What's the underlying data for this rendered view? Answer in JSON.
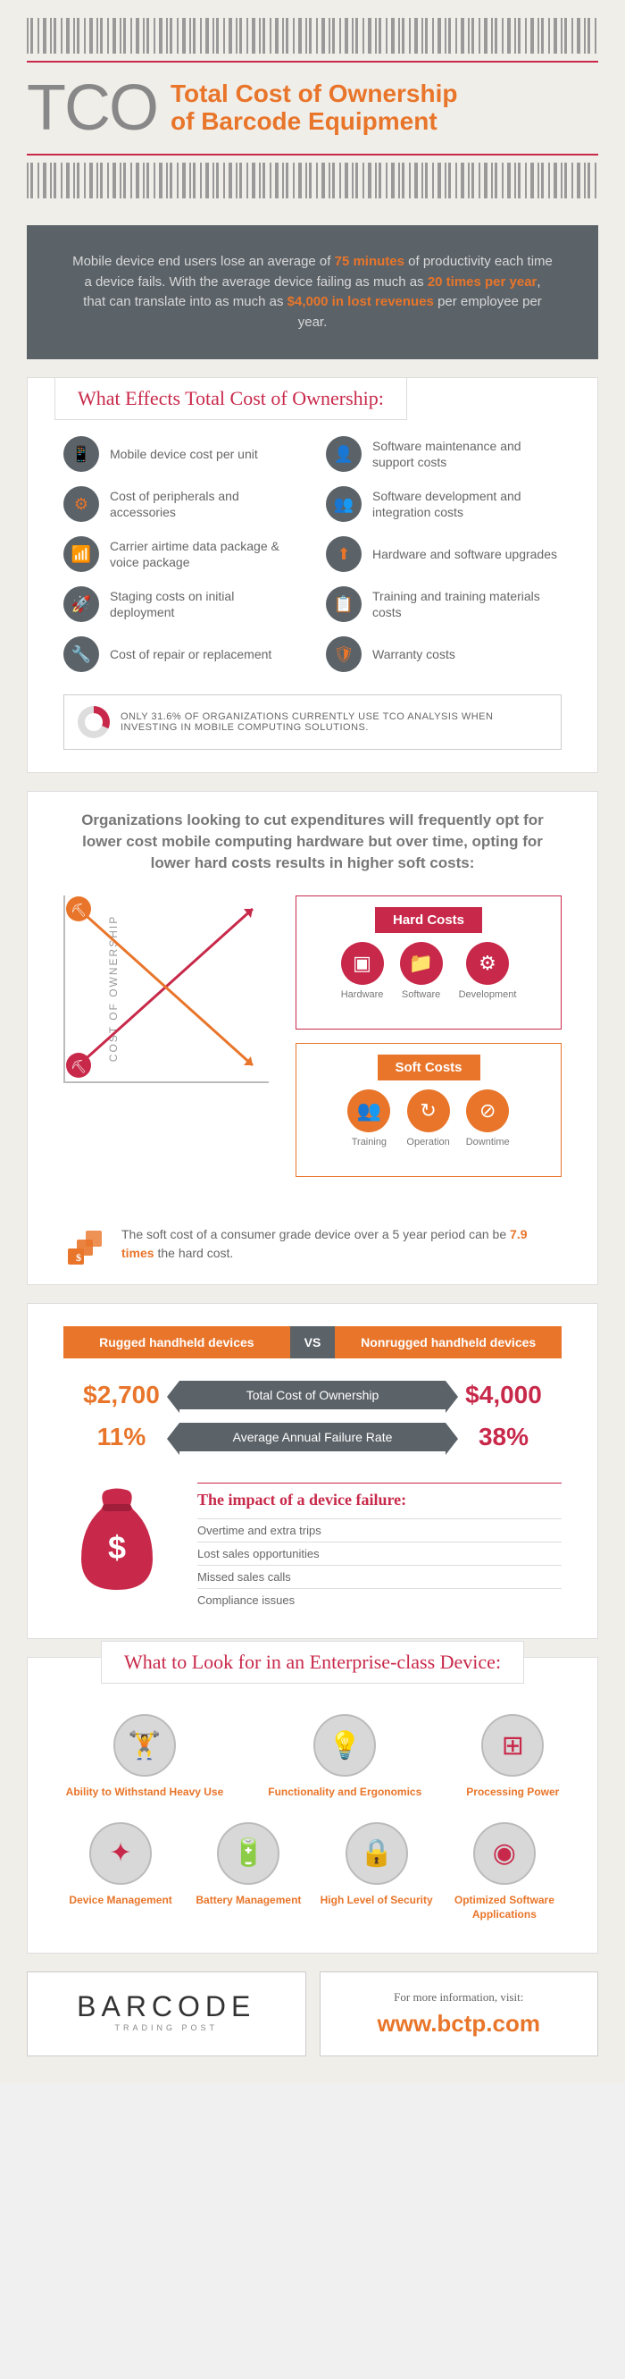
{
  "header": {
    "acronym": "TCO",
    "title_line1": "Total Cost of Ownership",
    "title_line2": "of Barcode Equipment"
  },
  "intro": {
    "pre1": "Mobile device end users lose an average of ",
    "hl1": "75 minutes",
    "mid1": " of productivity each time a device fails. With the average device failing as much as ",
    "hl2": "20 times per year",
    "mid2": ", that can translate into as much as ",
    "hl3": "$4,000 in lost revenues",
    "post": " per employee per year."
  },
  "effects": {
    "title": "What Effects Total Cost of Ownership:",
    "items": [
      {
        "icon": "📱",
        "label": "Mobile device cost per unit"
      },
      {
        "icon": "👤",
        "label": "Software maintenance and support costs"
      },
      {
        "icon": "⚙",
        "label": "Cost of peripherals and accessories"
      },
      {
        "icon": "👥",
        "label": "Software development and integration costs"
      },
      {
        "icon": "📶",
        "label": "Carrier airtime data package & voice package"
      },
      {
        "icon": "⬆",
        "label": "Hardware and software upgrades"
      },
      {
        "icon": "🚀",
        "label": "Staging costs on initial deployment"
      },
      {
        "icon": "📋",
        "label": "Training and training materials costs"
      },
      {
        "icon": "🔧",
        "label": "Cost of repair or replacement"
      },
      {
        "icon": "🛡",
        "label": "Warranty costs"
      }
    ],
    "stat_pct": 31.6,
    "stat_text": "ONLY 31.6% OF ORGANIZATIONS CURRENTLY USE TCO ANALYSIS WHEN INVESTING IN MOBILE COMPUTING SOLUTIONS."
  },
  "chart": {
    "intro": "Organizations looking to cut expenditures will frequently opt for lower cost mobile computing hardware but over time, opting for lower hard costs results in higher soft costs:",
    "ylabel": "COST OF OWNERSHIP",
    "hard_label": "Hard Costs",
    "hard_items": [
      {
        "icon": "▣",
        "label": "Hardware"
      },
      {
        "icon": "📁",
        "label": "Software"
      },
      {
        "icon": "⚙",
        "label": "Development"
      }
    ],
    "soft_label": "Soft Costs",
    "soft_items": [
      {
        "icon": "👥",
        "label": "Training"
      },
      {
        "icon": "↻",
        "label": "Operation"
      },
      {
        "icon": "⊘",
        "label": "Downtime"
      }
    ],
    "soft_note_pre": "The soft cost of a consumer grade device over a 5 year period can be ",
    "soft_note_hl": "7.9 times",
    "soft_note_post": " the hard cost.",
    "colors": {
      "hard": "#c8294a",
      "soft": "#e8752a",
      "axis": "#bbbbbb"
    }
  },
  "vs": {
    "left": "Rugged handheld devices",
    "mid": "VS",
    "right": "Nonrugged handheld devices",
    "rows": [
      {
        "left": "$2,700",
        "label": "Total Cost of Ownership",
        "right": "$4,000"
      },
      {
        "left": "11%",
        "label": "Average Annual Failure Rate",
        "right": "38%"
      }
    ]
  },
  "impact": {
    "title": "The impact of a device failure:",
    "items": [
      "Overtime and extra trips",
      "Lost sales opportunities",
      "Missed sales calls",
      "Compliance issues"
    ]
  },
  "enterprise": {
    "title": "What to Look for in an Enterprise-class Device:",
    "items": [
      {
        "icon": "🏋",
        "label": "Ability to Withstand Heavy Use"
      },
      {
        "icon": "💡",
        "label": "Functionality and Ergonomics"
      },
      {
        "icon": "⊞",
        "label": "Processing Power"
      },
      {
        "icon": "✦",
        "label": "Device Management"
      },
      {
        "icon": "🔋",
        "label": "Battery Management"
      },
      {
        "icon": "🔒",
        "label": "High Level of Security"
      },
      {
        "icon": "◉",
        "label": "Optimized Software Applications"
      }
    ]
  },
  "footer": {
    "brand": "BARCODE",
    "brand_sub": "TRADING POST",
    "info_label": "For more information, visit:",
    "url": "www.bctp.com"
  },
  "palette": {
    "orange": "#e8752a",
    "magenta": "#c8294a",
    "grey": "#5b6268",
    "bg": "#f0eee9"
  }
}
